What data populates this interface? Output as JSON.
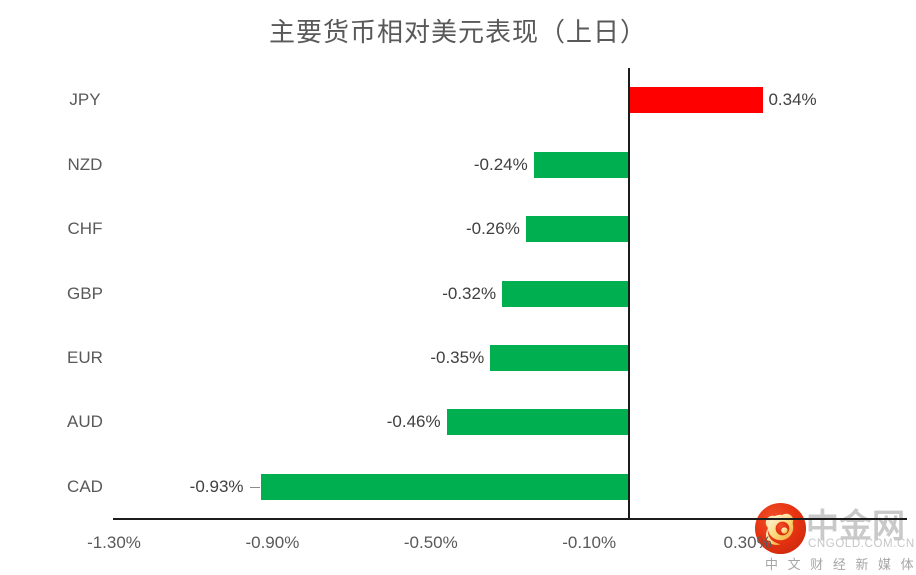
{
  "chart_data": {
    "type": "bar",
    "orientation": "horizontal",
    "title": "主要货币相对美元表现（上日）",
    "categories": [
      "JPY",
      "NZD",
      "CHF",
      "GBP",
      "EUR",
      "AUD",
      "CAD"
    ],
    "values": [
      0.34,
      -0.24,
      -0.26,
      -0.32,
      -0.35,
      -0.46,
      -0.93
    ],
    "value_labels": [
      "0.34%",
      "-0.24%",
      "-0.26%",
      "-0.32%",
      "-0.35%",
      "-0.46%",
      "-0.93%"
    ],
    "positive_color": "#ff0000",
    "negative_color": "#00b050",
    "axis_color": "#1c1c1c",
    "grid": "off",
    "legend": "none",
    "xlim": [
      -1.3,
      0.7
    ],
    "xticks": [
      {
        "value": -1.3,
        "label": "-1.30%"
      },
      {
        "value": -0.9,
        "label": "-0.90%"
      },
      {
        "value": -0.5,
        "label": "-0.50%"
      },
      {
        "value": -0.1,
        "label": "-0.10%"
      },
      {
        "value": 0.3,
        "label": "0.30%"
      }
    ],
    "leader_line_category": "CAD"
  },
  "watermark": {
    "brand": "中金网",
    "domain": "CNGOLD.COM.CN",
    "tagline": "中 文 财 经 新 媒 体"
  }
}
